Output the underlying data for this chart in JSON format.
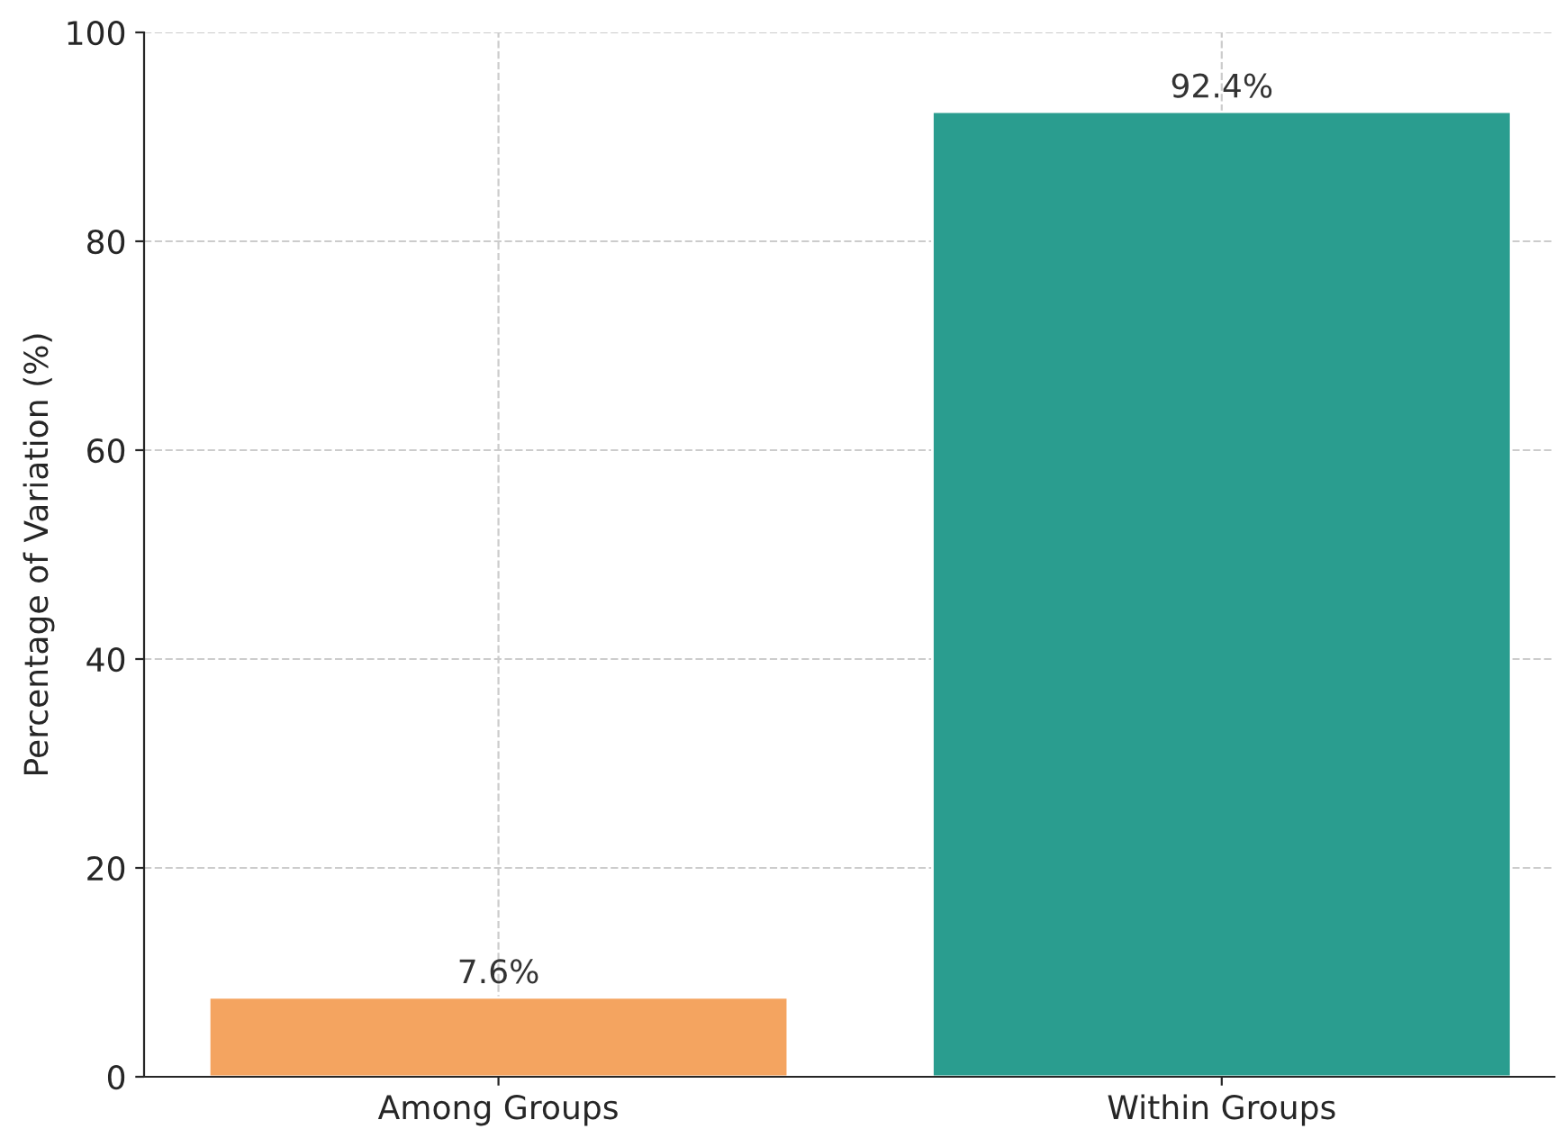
{
  "chart_data": {
    "type": "bar",
    "ylabel": "Percentage of Variation (%)",
    "categories": [
      "Among Groups",
      "Within Groups"
    ],
    "values": [
      7.6,
      92.4
    ],
    "colors": [
      "#f4a460",
      "#2a9d8f"
    ],
    "value_labels": [
      "7.6%",
      "92.4%"
    ],
    "ylim": [
      0,
      100
    ],
    "yticks": [
      0,
      20,
      40,
      60,
      80,
      100
    ],
    "grid": true
  }
}
